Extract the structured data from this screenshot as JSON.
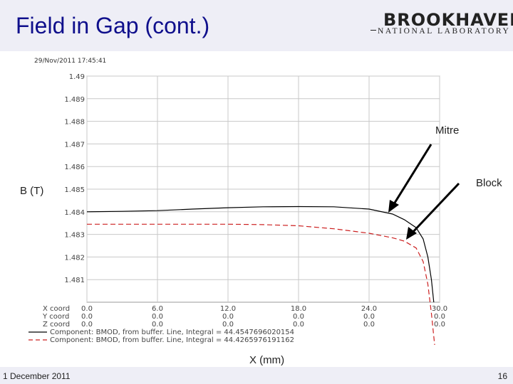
{
  "slide": {
    "title": "Field in Gap (cont.)",
    "logo_main": "BROOKHAVEN",
    "logo_sub": "NATIONAL LABORATORY",
    "date": "1 December 2011",
    "page_number": "16"
  },
  "annotations": {
    "mitre": "Mitre",
    "block": "Block"
  },
  "chart_data": {
    "type": "line",
    "timestamp": "29/Nov/2011 17:45:41",
    "xlabel": "X (mm)",
    "ylabel": "B (T)",
    "xlim": [
      0,
      30
    ],
    "ylim": [
      1.48,
      1.49
    ],
    "grid": true,
    "x_ticks": [
      "0.0",
      "6.0",
      "12.0",
      "18.0",
      "24.0",
      "30.0"
    ],
    "y_ticks": [
      "1.49",
      "1.489",
      "1.488",
      "1.487",
      "1.486",
      "1.485",
      "1.484",
      "1.483",
      "1.482",
      "1.481"
    ],
    "coord_table": [
      {
        "label": "X coord",
        "values": [
          "0.0",
          "6.0",
          "12.0",
          "18.0",
          "24.0",
          "30.0"
        ]
      },
      {
        "label": "Y coord",
        "values": [
          "0.0",
          "0.0",
          "0.0",
          "0.0",
          "0.0",
          "0.0"
        ]
      },
      {
        "label": "Z coord",
        "values": [
          "0.0",
          "0.0",
          "0.0",
          "0.0",
          "0.0",
          "0.0"
        ]
      }
    ],
    "series": [
      {
        "name": "Component: BMOD, from buffer. Line, Integral = 44.4547696020154",
        "color": "#000000",
        "dash": "solid",
        "x": [
          0,
          3,
          6,
          9,
          12,
          15,
          18,
          21,
          24,
          26,
          27,
          28,
          28.6,
          29.0,
          29.3,
          29.5
        ],
        "y": [
          1.484,
          1.48402,
          1.48405,
          1.48412,
          1.48418,
          1.48422,
          1.48423,
          1.48422,
          1.48412,
          1.4839,
          1.48365,
          1.4833,
          1.4828,
          1.482,
          1.481,
          1.48
        ]
      },
      {
        "name": "Component: BMOD, from buffer. Line, Integral = 44.4265976191162",
        "color": "#cc2020",
        "dash": "dashed",
        "x": [
          0,
          3,
          6,
          9,
          12,
          15,
          18,
          21,
          24,
          26,
          27,
          28,
          28.6,
          29.0,
          29.3,
          29.6
        ],
        "y": [
          1.48345,
          1.48345,
          1.48345,
          1.48345,
          1.48345,
          1.48343,
          1.48338,
          1.48325,
          1.48305,
          1.48285,
          1.4827,
          1.4824,
          1.4818,
          1.4808,
          1.4795,
          1.478
        ]
      }
    ]
  }
}
